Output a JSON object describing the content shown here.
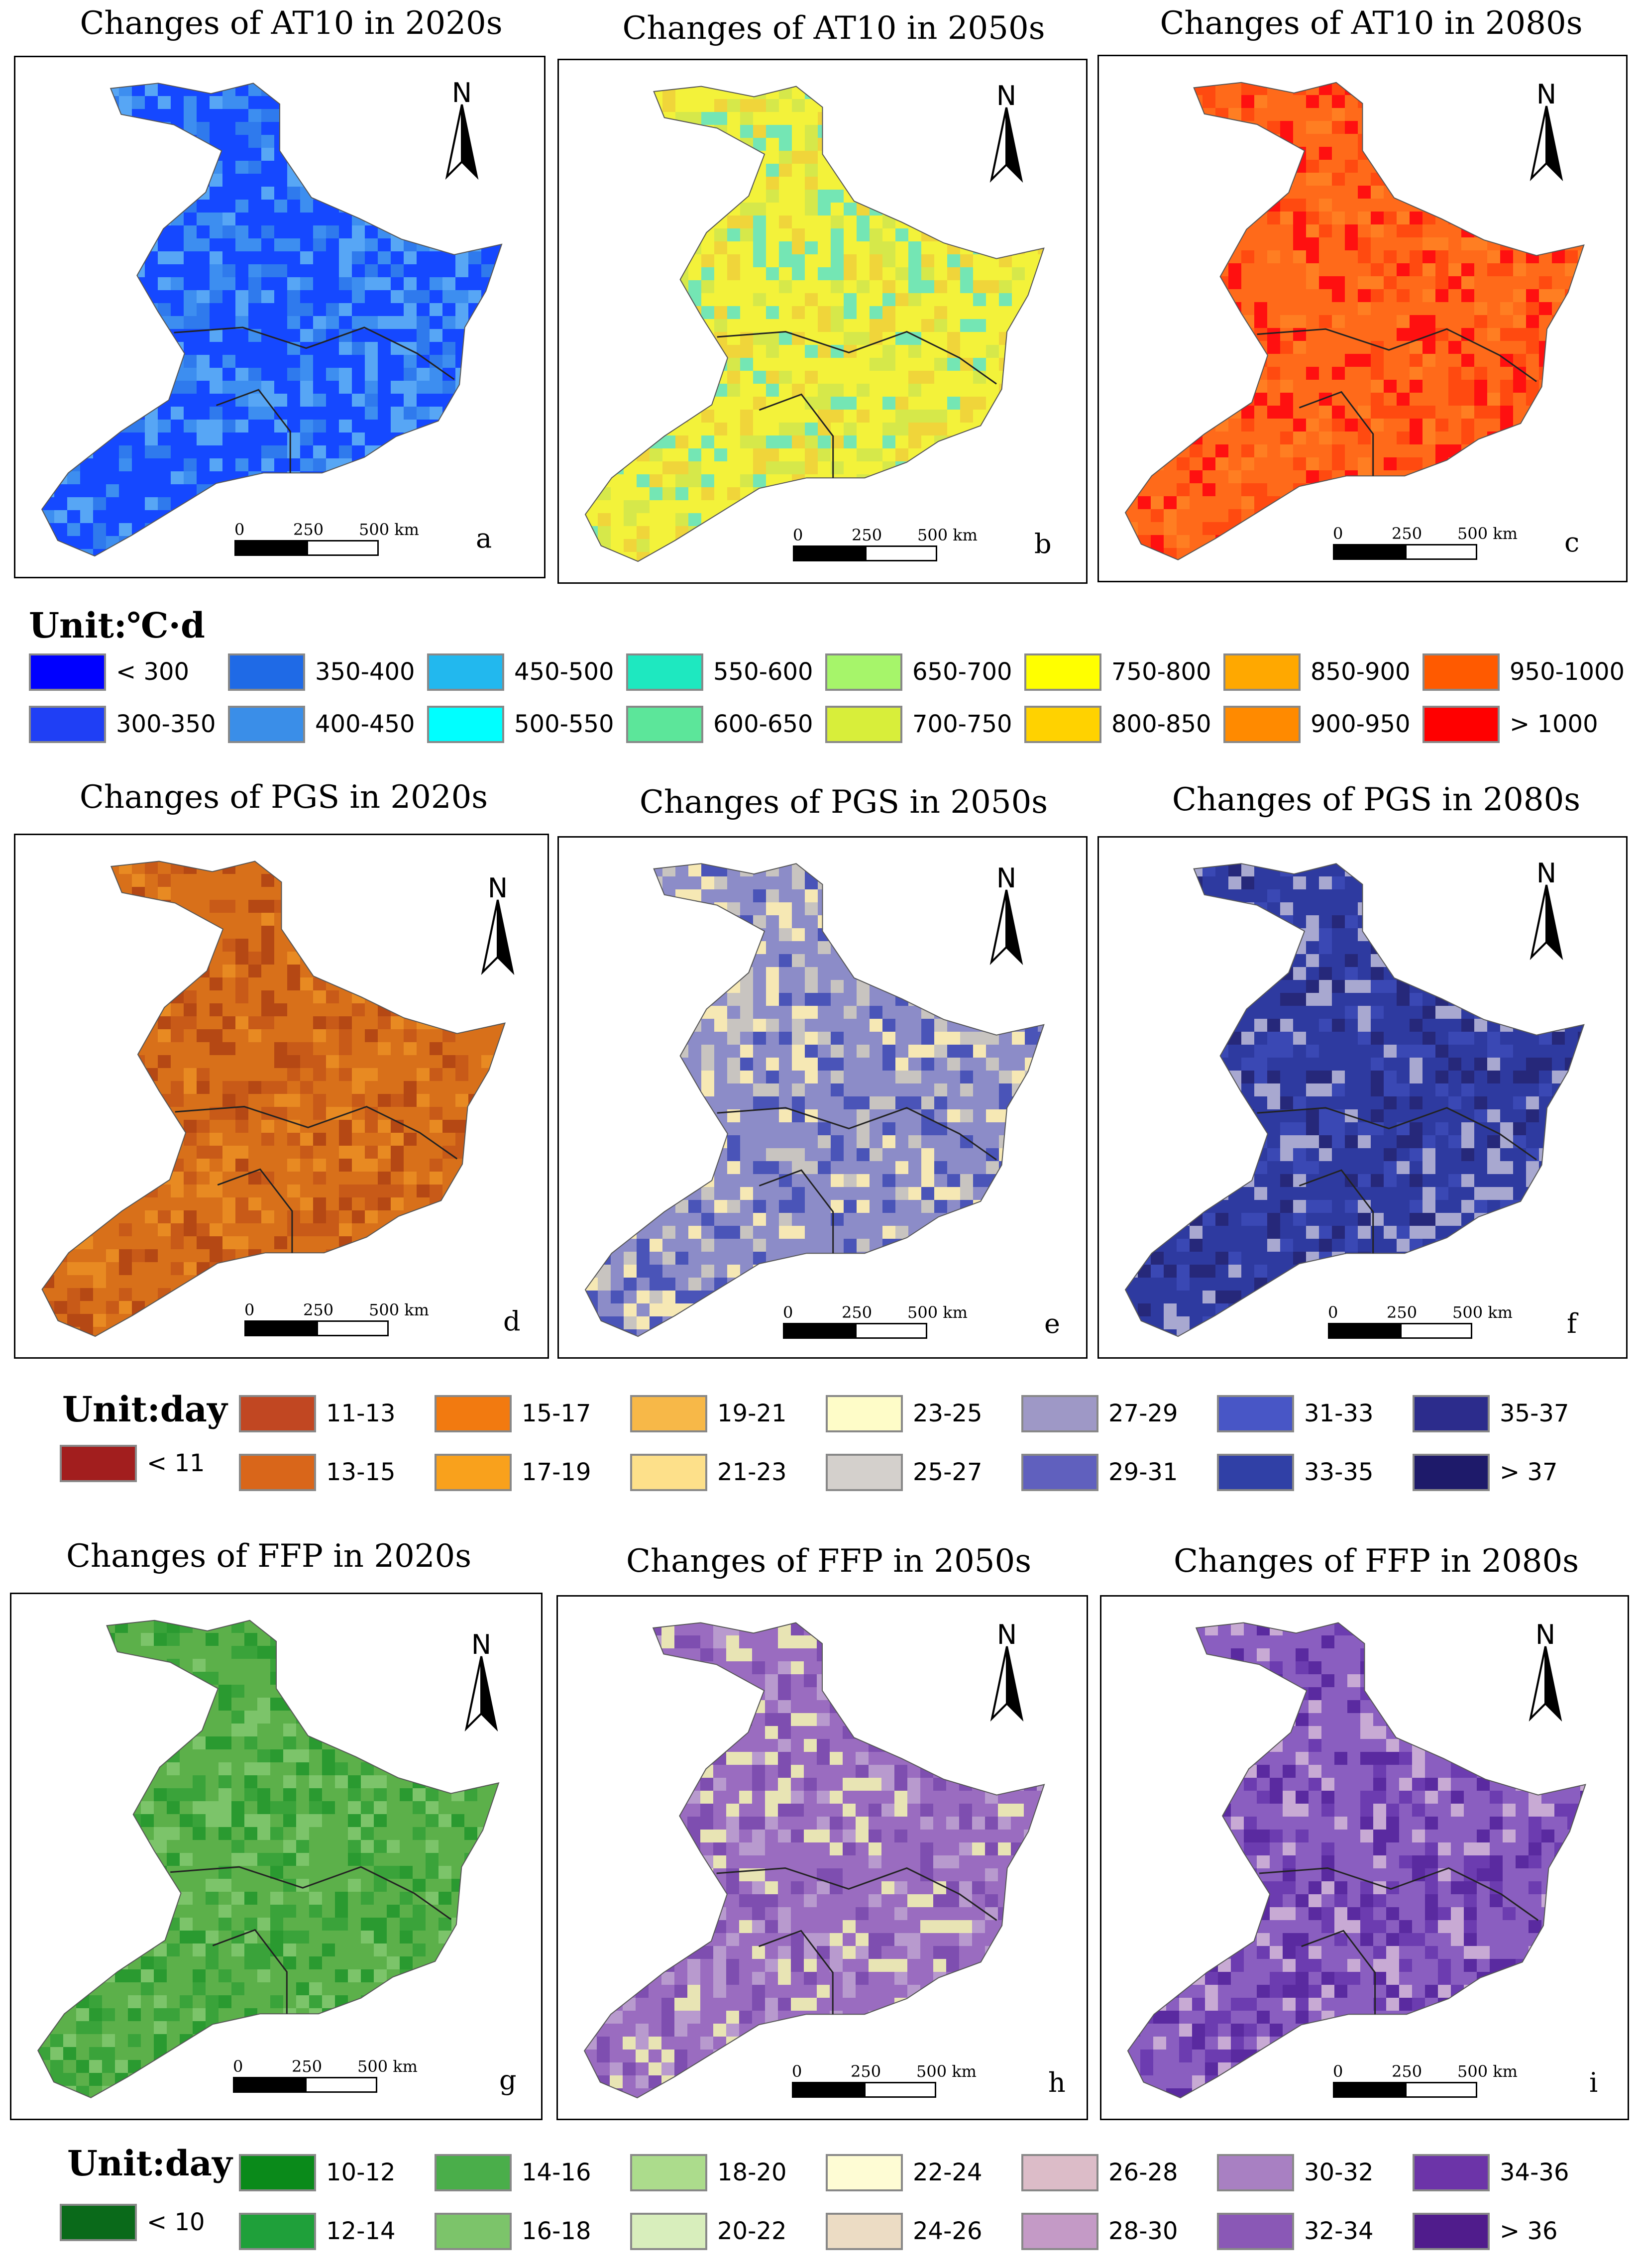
{
  "rows": [
    {
      "panels": [
        {
          "title": "Changes of AT10 in 2020s",
          "letter": "a",
          "palette": [
            "#1548ff",
            "#2f7aed",
            "#3d8ef0",
            "#57a6f5"
          ]
        },
        {
          "title": "Changes of AT10 in 2050s",
          "letter": "b",
          "palette": [
            "#f3f23a",
            "#f0d53a",
            "#d6e84a",
            "#74e6b4"
          ]
        },
        {
          "title": "Changes of AT10 in 2080s",
          "letter": "c",
          "palette": [
            "#ff6a1a",
            "#ff4a10",
            "#ff7e22",
            "#ff1010"
          ]
        }
      ],
      "legend": {
        "title": "Unit:℃·d",
        "items": [
          {
            "label": "< 300",
            "color": "#0000ff"
          },
          {
            "label": "300-350",
            "color": "#1f3ff5"
          },
          {
            "label": "350-400",
            "color": "#1f6ae6"
          },
          {
            "label": "400-450",
            "color": "#3a8ee8"
          },
          {
            "label": "450-500",
            "color": "#22b8ee"
          },
          {
            "label": "500-550",
            "color": "#00ffff"
          },
          {
            "label": "550-600",
            "color": "#1ee8c0"
          },
          {
            "label": "600-650",
            "color": "#5ce69a"
          },
          {
            "label": "650-700",
            "color": "#a6f56a"
          },
          {
            "label": "700-750",
            "color": "#d8ee3a"
          },
          {
            "label": "750-800",
            "color": "#ffff00"
          },
          {
            "label": "800-850",
            "color": "#ffd200"
          },
          {
            "label": "850-900",
            "color": "#ffa800"
          },
          {
            "label": "900-950",
            "color": "#ff8a00"
          },
          {
            "label": "950-1000",
            "color": "#ff5a00"
          },
          {
            "label": "> 1000",
            "color": "#ff0000"
          }
        ]
      }
    },
    {
      "panels": [
        {
          "title": "Changes of PGS in 2020s",
          "letter": "d",
          "palette": [
            "#d8701a",
            "#c85a18",
            "#e88a22",
            "#b54814"
          ]
        },
        {
          "title": "Changes of PGS in 2050s",
          "letter": "e",
          "palette": [
            "#8c8cc8",
            "#4a54b8",
            "#c8c4c0",
            "#f6e8b4"
          ]
        },
        {
          "title": "Changes of PGS in 2080s",
          "letter": "f",
          "palette": [
            "#2e3aa0",
            "#3a48b4",
            "#26287a",
            "#a8a8d0"
          ]
        }
      ],
      "legend": {
        "title": "Unit:day",
        "items": [
          {
            "label": "< 11",
            "color": "#a21e1e"
          },
          {
            "label": "11-13",
            "color": "#c14722"
          },
          {
            "label": "13-15",
            "color": "#d9661a"
          },
          {
            "label": "15-17",
            "color": "#f27a10"
          },
          {
            "label": "17-19",
            "color": "#f9a11c"
          },
          {
            "label": "19-21",
            "color": "#f7b848"
          },
          {
            "label": "21-23",
            "color": "#fde08a"
          },
          {
            "label": "23-25",
            "color": "#fefcc8"
          },
          {
            "label": "25-27",
            "color": "#d4d0cc"
          },
          {
            "label": "27-29",
            "color": "#9e98c6"
          },
          {
            "label": "29-31",
            "color": "#6060be"
          },
          {
            "label": "31-33",
            "color": "#4856c6"
          },
          {
            "label": "33-35",
            "color": "#3040a6"
          },
          {
            "label": "35-37",
            "color": "#2c2c8c"
          },
          {
            "label": "> 37",
            "color": "#1e1a6a"
          }
        ]
      }
    },
    {
      "panels": [
        {
          "title": "Changes of FFP in 2020s",
          "letter": "g",
          "palette": [
            "#5cb04a",
            "#3aa33a",
            "#7cc46a",
            "#2a9a30"
          ]
        },
        {
          "title": "Changes of FFP in 2050s",
          "letter": "h",
          "palette": [
            "#9a6cc0",
            "#b89ace",
            "#e8e4b4",
            "#7e4eb0"
          ]
        },
        {
          "title": "Changes of FFP in 2080s",
          "letter": "i",
          "palette": [
            "#8a5ec0",
            "#6c3cb0",
            "#c8aad4",
            "#5a2aa0"
          ]
        }
      ],
      "legend": {
        "title": "Unit:day",
        "items": [
          {
            "label": "< 10",
            "color": "#0a6a1a"
          },
          {
            "label": "10-12",
            "color": "#0a8a1a"
          },
          {
            "label": "12-14",
            "color": "#1fa03a"
          },
          {
            "label": "14-16",
            "color": "#4aae4a"
          },
          {
            "label": "16-18",
            "color": "#7cc46a"
          },
          {
            "label": "18-20",
            "color": "#acdc8c"
          },
          {
            "label": "20-22",
            "color": "#d8eebc"
          },
          {
            "label": "22-24",
            "color": "#fefcd4"
          },
          {
            "label": "24-26",
            "color": "#ecdcc4"
          },
          {
            "label": "26-28",
            "color": "#dcbcc8"
          },
          {
            "label": "28-30",
            "color": "#c49ac6"
          },
          {
            "label": "30-32",
            "color": "#a880c2"
          },
          {
            "label": "32-34",
            "color": "#8a58b6"
          },
          {
            "label": "34-36",
            "color": "#6c34a8"
          },
          {
            "label": "> 36",
            "color": "#501c8c"
          }
        ]
      }
    }
  ],
  "north_label": "N",
  "scale": {
    "labels": [
      "0",
      "250",
      "500 km"
    ]
  }
}
